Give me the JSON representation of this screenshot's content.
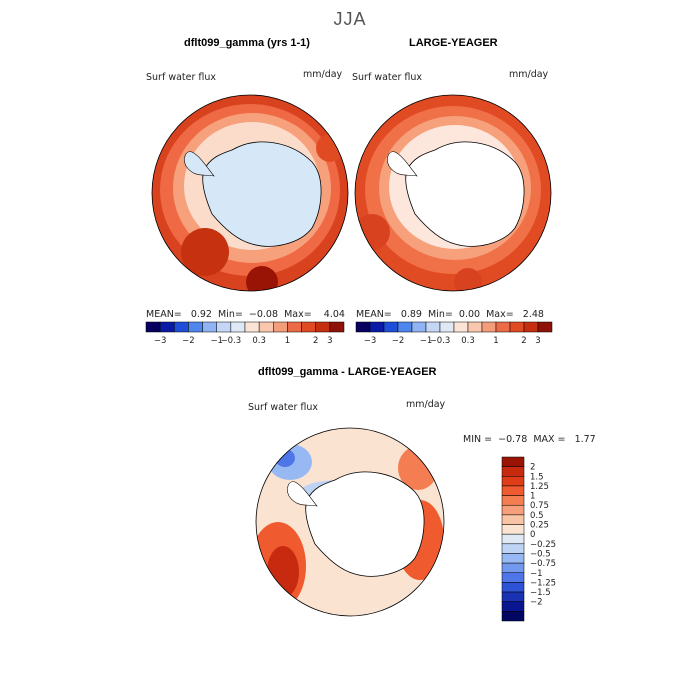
{
  "figure": {
    "season": "JJA",
    "diff_title": "dflt099_gamma - LARGE-YEAGER"
  },
  "chart_data": [
    {
      "type": "heatmap",
      "title": "dflt099_gamma (yrs 1-1)",
      "variable": "Surf water flux",
      "units": "mm/day",
      "projection": "south polar stereographic",
      "stats": {
        "mean_label": "MEAN=",
        "mean": "0.92",
        "min_label": "Min=",
        "min": "−0.08",
        "max_label": "Max=",
        "max": "4.04"
      }
    },
    {
      "type": "heatmap",
      "title": "LARGE-YEAGER",
      "variable": "Surf water flux",
      "units": "mm/day",
      "projection": "south polar stereographic",
      "stats": {
        "mean_label": "MEAN=",
        "mean": "0.89",
        "min_label": "Min=",
        "min": "0.00",
        "max_label": "Max=",
        "max": "2.48"
      }
    },
    {
      "type": "heatmap",
      "title": "dflt099_gamma - LARGE-YEAGER",
      "variable": "Surf water flux",
      "units": "mm/day",
      "projection": "south polar stereographic",
      "stats": {
        "min_label": "MIN =",
        "min": "−0.78",
        "max_label": "MAX =",
        "max": "1.77"
      }
    }
  ],
  "colorbar_main": {
    "colors": [
      "#08005e",
      "#0a1aa6",
      "#1f4fd8",
      "#4f86ee",
      "#8fb3f3",
      "#c4d6f3",
      "#dfe9f6",
      "#fbe4d6",
      "#f9c7ad",
      "#f39d7a",
      "#ec6a45",
      "#e04b24",
      "#c62e10",
      "#8e1207"
    ],
    "tick_labels": [
      "−3",
      "−2",
      "−1",
      "−0.3",
      "0.3",
      "1",
      "2",
      "3"
    ],
    "tick_edges": [
      1,
      3,
      5,
      6,
      8,
      10,
      12,
      13
    ]
  },
  "colorbar_diff": {
    "colors_top_to_bottom": [
      "#9a1406",
      "#c72a0f",
      "#de3d18",
      "#ef5a2e",
      "#f47e52",
      "#f69f7a",
      "#f8c4a6",
      "#fbe3d2",
      "#dfeaf6",
      "#bfd4f4",
      "#97b9f3",
      "#7399ef",
      "#4f76e8",
      "#2e52d6",
      "#1832b2",
      "#0a1690",
      "#020862"
    ],
    "tick_labels": [
      "2",
      "1.5",
      "1.25",
      "1",
      "0.75",
      "0.5",
      "0.25",
      "0",
      "−0.25",
      "−0.5",
      "−0.75",
      "−1",
      "−1.25",
      "−1.5",
      "−2"
    ]
  }
}
